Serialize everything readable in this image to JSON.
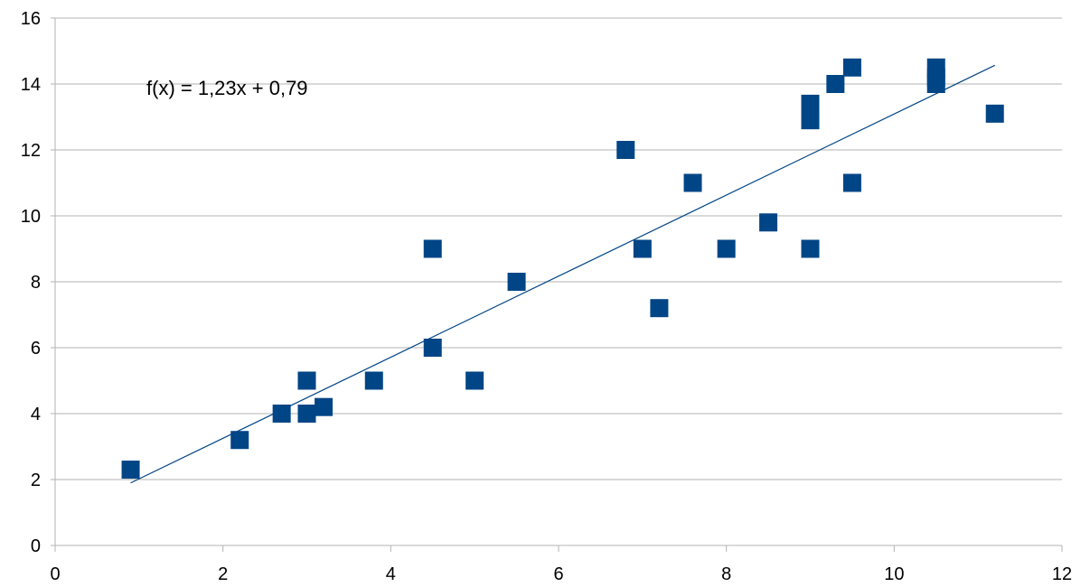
{
  "chart_data": {
    "type": "scatter",
    "title": "",
    "xlabel": "",
    "ylabel": "",
    "xlim": [
      0,
      12
    ],
    "ylim": [
      0,
      16
    ],
    "x_ticks": [
      0,
      2,
      4,
      6,
      8,
      10,
      12
    ],
    "y_ticks": [
      0,
      2,
      4,
      6,
      8,
      10,
      12,
      14,
      16
    ],
    "grid": "horizontal",
    "legend": "none",
    "marker": "square",
    "marker_color": "#004586",
    "trendline_color": "#004586",
    "gridline_color": "#b3b3b3",
    "series": [
      {
        "points": [
          {
            "x": 0.9,
            "y": 2.3
          },
          {
            "x": 2.2,
            "y": 3.2
          },
          {
            "x": 2.7,
            "y": 4.0
          },
          {
            "x": 3.0,
            "y": 5.0
          },
          {
            "x": 3.0,
            "y": 4.0
          },
          {
            "x": 3.2,
            "y": 4.2
          },
          {
            "x": 3.8,
            "y": 5.0
          },
          {
            "x": 4.5,
            "y": 9.0
          },
          {
            "x": 4.5,
            "y": 6.0
          },
          {
            "x": 5.0,
            "y": 5.0
          },
          {
            "x": 5.5,
            "y": 8.0
          },
          {
            "x": 6.8,
            "y": 12.0
          },
          {
            "x": 7.0,
            "y": 9.0
          },
          {
            "x": 7.2,
            "y": 7.2
          },
          {
            "x": 7.6,
            "y": 11.0
          },
          {
            "x": 8.0,
            "y": 9.0
          },
          {
            "x": 8.5,
            "y": 9.8
          },
          {
            "x": 9.0,
            "y": 13.4
          },
          {
            "x": 9.0,
            "y": 13.2
          },
          {
            "x": 9.0,
            "y": 12.9
          },
          {
            "x": 9.0,
            "y": 9.0
          },
          {
            "x": 9.3,
            "y": 14.0
          },
          {
            "x": 9.5,
            "y": 14.5
          },
          {
            "x": 9.5,
            "y": 11.0
          },
          {
            "x": 10.5,
            "y": 14.5
          },
          {
            "x": 10.5,
            "y": 14.2
          },
          {
            "x": 10.5,
            "y": 14.0
          },
          {
            "x": 11.2,
            "y": 13.1
          }
        ]
      }
    ],
    "trendline": {
      "slope": 1.23,
      "intercept": 0.79,
      "x_start": 0.9,
      "x_end": 11.2,
      "equation_label": "f(x) = 1,23x + 0,79"
    }
  }
}
